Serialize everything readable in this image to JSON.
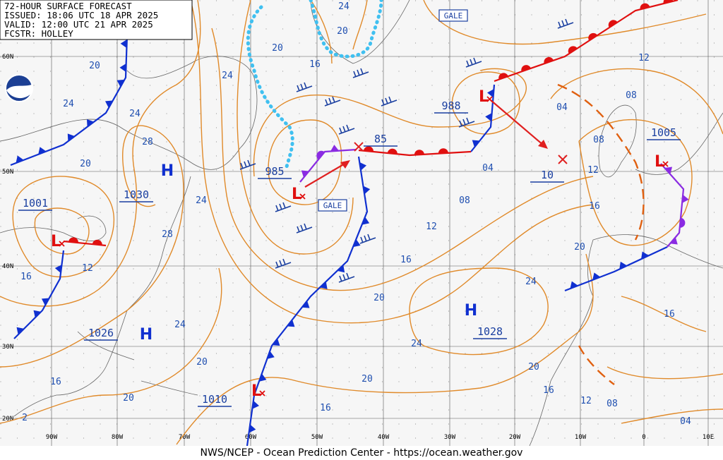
{
  "header": {
    "title": "72-HOUR SURFACE FORECAST",
    "issued": "ISSUED: 18:06 UTC 18 APR 2025",
    "valid": "VALID: 12:00 UTC 21 APR 2025",
    "forecaster": "FCSTR: HOLLEY"
  },
  "latitude_labels": [
    "60N",
    "50N",
    "40N",
    "30N",
    "20N"
  ],
  "longitude_labels": [
    "90W",
    "80W",
    "70W",
    "60W",
    "50W",
    "40W",
    "30W",
    "20W",
    "10W",
    "0",
    "10E"
  ],
  "highs": [
    "H",
    "H",
    "H"
  ],
  "lows": [
    "L",
    "L",
    "L",
    "L",
    "L"
  ],
  "pressure_labels": [
    "1001",
    "1030",
    "1026",
    "1010",
    "985",
    "85",
    "988",
    "10",
    "1005",
    "1028"
  ],
  "gale_labels": [
    "GALE",
    "GALE"
  ],
  "isobar_labels": [
    "24",
    "20",
    "20",
    "16",
    "24",
    "20",
    "24",
    "24",
    "28",
    "20",
    "24",
    "28",
    "12",
    "16",
    "24",
    "20",
    "16",
    "20",
    "2",
    "16",
    "20",
    "24",
    "20",
    "16",
    "12",
    "08",
    "04",
    "12",
    "08",
    "04",
    "08",
    "12",
    "16",
    "20",
    "24",
    "16",
    "20",
    "16",
    "12",
    "08",
    "04"
  ],
  "footer": "NWS/NCEP - Ocean Prediction Center - https://ocean.weather.gov"
}
